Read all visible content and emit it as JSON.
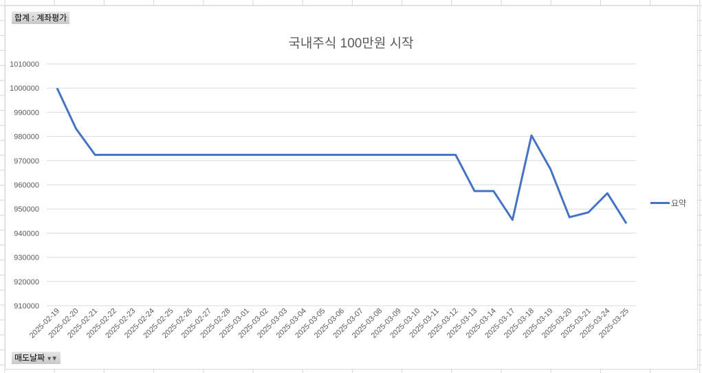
{
  "pivot": {
    "value_field": "합계 : 계좌평가",
    "axis_field": "매도날짜",
    "filter_icon": "filter-dropdown-icon"
  },
  "chart_data": {
    "type": "line",
    "title": "국내주식 100만원 시작",
    "xlabel": "",
    "ylabel": "",
    "ylim": [
      910000,
      1010000
    ],
    "yticks": [
      1010000,
      1000000,
      990000,
      980000,
      970000,
      960000,
      950000,
      940000,
      930000,
      920000,
      910000
    ],
    "grid": true,
    "legend_position": "right",
    "categories": [
      "2025-02-19",
      "2025-02-20",
      "2025-02-21",
      "2025-02-22",
      "2025-02-23",
      "2025-02-24",
      "2025-02-25",
      "2025-02-26",
      "2025-02-27",
      "2025-02-28",
      "2025-03-01",
      "2025-03-02",
      "2025-03-03",
      "2025-03-04",
      "2025-03-05",
      "2025-03-06",
      "2025-03-07",
      "2025-03-08",
      "2025-03-09",
      "2025-03-10",
      "2025-03-11",
      "2025-03-12",
      "2025-03-13",
      "2025-03-14",
      "2025-03-17",
      "2025-03-18",
      "2025-03-19",
      "2025-03-20",
      "2025-03-21",
      "2025-03-24",
      "2025-03-25"
    ],
    "series": [
      {
        "name": "요약",
        "color": "#4472c4",
        "values": [
          1000000,
          983200,
          972400,
          972400,
          972400,
          972400,
          972400,
          972400,
          972400,
          972400,
          972400,
          972400,
          972400,
          972400,
          972400,
          972400,
          972400,
          972400,
          972400,
          972400,
          972400,
          972400,
          957400,
          957400,
          945500,
          980400,
          966500,
          946600,
          948600,
          956500,
          944000
        ]
      }
    ]
  }
}
